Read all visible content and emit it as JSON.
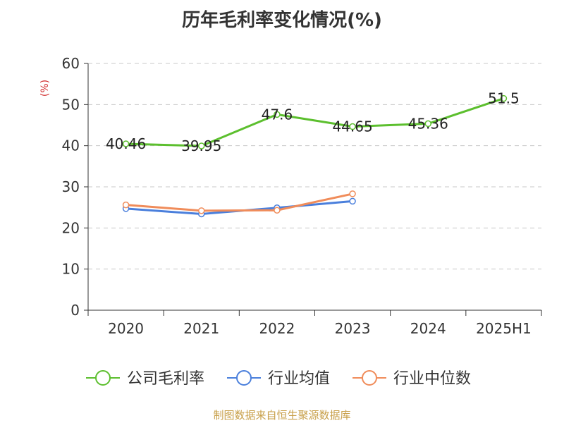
{
  "chart_data": {
    "type": "line",
    "title": "历年毛利率变化情况(%)",
    "ylabel": "(%)",
    "categories": [
      "2020",
      "2021",
      "2022",
      "2023",
      "2024",
      "2025H1"
    ],
    "ylim": [
      0,
      60
    ],
    "yticks": [
      0,
      10,
      20,
      30,
      40,
      50,
      60
    ],
    "grid": true,
    "legend_position": "bottom",
    "series": [
      {
        "name": "公司毛利率",
        "color": "#5cbf2e",
        "values": [
          40.46,
          39.95,
          47.6,
          44.65,
          45.36,
          51.5
        ],
        "labels": [
          "40.46",
          "39.95",
          "47.6",
          "44.65",
          "45.36",
          "51.5"
        ]
      },
      {
        "name": "行业均值",
        "color": "#4a7fdc",
        "values": [
          24.7,
          23.4,
          24.9,
          26.5,
          null,
          null
        ]
      },
      {
        "name": "行业中位数",
        "color": "#f08c5a",
        "values": [
          25.6,
          24.2,
          24.3,
          28.3,
          null,
          null
        ]
      }
    ]
  },
  "source": "制图数据来自恒生聚源数据库"
}
